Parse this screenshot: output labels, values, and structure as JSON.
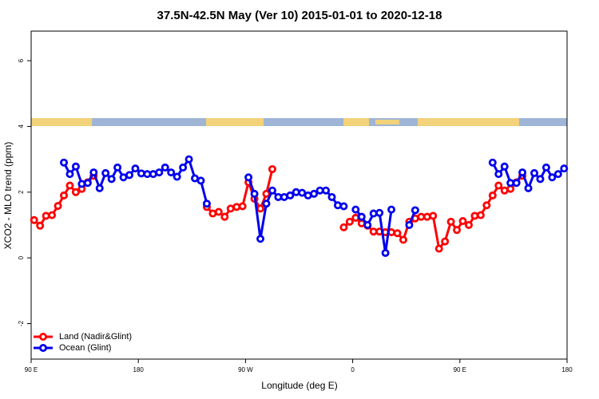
{
  "chart_data": {
    "type": "line",
    "title": "37.5N-42.5N May (Ver 10)   2015-01-01 to 2020-12-18",
    "xlabel": "Longitude (deg E)",
    "ylabel": "XCO2 - MLO trend (ppm)",
    "x": [
      92.5,
      97.5,
      102.5,
      107.5,
      112.5,
      117.5,
      122.5,
      127.5,
      132.5,
      137.5,
      142.5,
      147.5,
      152.5,
      157.5,
      162.5,
      167.5,
      172.5,
      177.5,
      182.5,
      187.5,
      192.5,
      197.5,
      202.5,
      207.5,
      212.5,
      217.5,
      222.5,
      227.5,
      232.5,
      237.5,
      242.5,
      247.5,
      252.5,
      257.5,
      262.5,
      267.5,
      272.5,
      277.5,
      282.5,
      287.5,
      292.5,
      297.5,
      302.5,
      307.5,
      312.5,
      317.5,
      322.5,
      327.5,
      332.5,
      337.5,
      342.5,
      347.5,
      352.5,
      357.5,
      362.5,
      367.5,
      372.5,
      377.5,
      382.5,
      387.5,
      392.5,
      397.5,
      402.5,
      407.5,
      412.5,
      417.5,
      422.5,
      427.5,
      432.5,
      437.5,
      442.5,
      447.5,
      452.5,
      457.5,
      462.5,
      467.5,
      472.5,
      477.5,
      482.5,
      487.5,
      492.5,
      497.5,
      502.5,
      507.5,
      512.5,
      517.5,
      522.5,
      527.5,
      532.5,
      537.5
    ],
    "series": [
      {
        "name": "Land (Nadir&Glint)",
        "color": "#ff0000",
        "values": [
          1.15,
          0.98,
          1.28,
          1.3,
          1.58,
          1.9,
          2.2,
          2.0,
          2.1,
          2.3,
          2.5,
          null,
          null,
          null,
          null,
          null,
          null,
          null,
          null,
          null,
          null,
          null,
          null,
          null,
          null,
          null,
          null,
          null,
          null,
          1.55,
          1.35,
          1.4,
          1.25,
          1.5,
          1.55,
          1.57,
          2.3,
          1.8,
          1.5,
          1.95,
          2.7,
          null,
          null,
          null,
          null,
          null,
          null,
          null,
          null,
          null,
          null,
          null,
          0.93,
          1.1,
          1.22,
          1.05,
          0.98,
          0.8,
          0.8,
          0.78,
          0.78,
          0.75,
          0.55,
          1.1,
          1.2,
          1.25,
          1.25,
          1.28,
          0.28,
          0.5,
          1.1,
          0.85,
          1.12,
          1.0,
          1.28,
          1.3,
          1.6,
          1.9,
          2.2,
          2.05,
          2.1,
          2.3,
          2.5,
          null,
          null,
          null,
          null,
          null,
          null,
          null
        ]
      },
      {
        "name": "Ocean (Glint)",
        "color": "#0000ee",
        "values": [
          null,
          null,
          null,
          null,
          null,
          2.9,
          2.55,
          2.78,
          2.25,
          2.28,
          2.6,
          2.12,
          2.58,
          2.4,
          2.75,
          2.45,
          2.52,
          2.72,
          2.57,
          2.55,
          2.55,
          2.6,
          2.75,
          2.6,
          2.47,
          2.75,
          3.0,
          2.42,
          2.35,
          1.65,
          null,
          null,
          null,
          null,
          null,
          null,
          2.45,
          1.95,
          0.58,
          1.65,
          2.05,
          1.85,
          1.85,
          1.9,
          2.0,
          1.98,
          1.9,
          1.95,
          2.05,
          2.05,
          1.85,
          1.6,
          1.57,
          null,
          1.47,
          1.25,
          1.0,
          1.35,
          1.37,
          0.15,
          1.47,
          null,
          null,
          1.0,
          1.45,
          null,
          null,
          null,
          null,
          null,
          null,
          null,
          null,
          null,
          null,
          null,
          null,
          2.9,
          2.55,
          2.78,
          2.28,
          2.28,
          2.6,
          2.12,
          2.58,
          2.4,
          2.75,
          2.45,
          2.55,
          2.72
        ]
      }
    ],
    "xlim": [
      90,
      540
    ],
    "xticks": [
      {
        "value": 90,
        "label": "90 E"
      },
      180,
      {
        "value": 270,
        "label": "90 W"
      },
      {
        "value": 360,
        "label": "0"
      },
      {
        "value": 450,
        "label": "90 E"
      },
      {
        "value": 540,
        "label": "180"
      }
    ],
    "ylim": [
      -3.08,
      6.9
    ],
    "yticks": [
      -2,
      0,
      2,
      4,
      6
    ],
    "legend": "bottom-left"
  }
}
